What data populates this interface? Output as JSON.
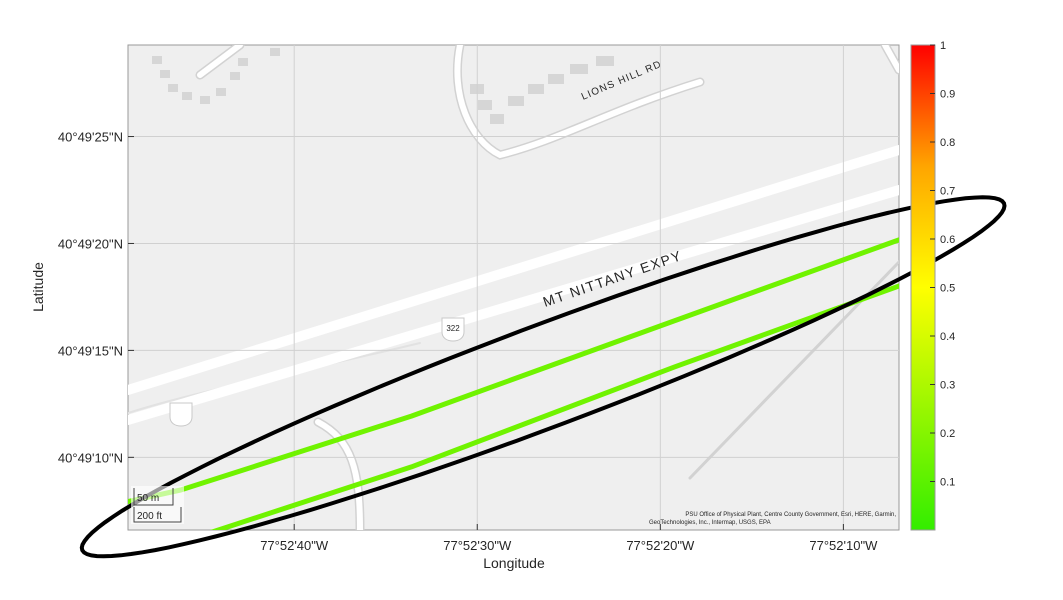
{
  "chart_data": {
    "type": "scatter",
    "xlabel": "Longitude",
    "ylabel": "Latitude",
    "x_ticks": [
      {
        "value": -77.877778,
        "label": "77°52'40\"W"
      },
      {
        "value": -77.875,
        "label": "77°52'30\"W"
      },
      {
        "value": -77.872222,
        "label": "77°52'20\"W"
      },
      {
        "value": -77.869444,
        "label": "77°52'10\"W"
      }
    ],
    "y_ticks": [
      {
        "value": 40.823611,
        "label": "40°49'25\"N"
      },
      {
        "value": 40.822222,
        "label": "40°49'20\"N"
      },
      {
        "value": 40.820833,
        "label": "40°49'15\"N"
      },
      {
        "value": 40.819444,
        "label": "40°49'10\"N"
      }
    ],
    "xlim": [
      -77.8803,
      -77.8686
    ],
    "ylim": [
      40.8185,
      40.8248
    ],
    "grid": true,
    "basemap_labels": [
      "LIONS HILL RD",
      "MT NITTANY EXPY",
      "322"
    ],
    "scale_bar": {
      "metric": "50 m",
      "imperial": "200 ft"
    },
    "attribution": [
      "PSU Office of Physical Plant, Centre County Government, Esri, HERE, Garmin,",
      "GeoTechnologies, Inc., Intermap, USGS, EPA"
    ],
    "colorbar": {
      "range": [
        0,
        1
      ],
      "ticks": [
        "0.1",
        "0.2",
        "0.3",
        "0.4",
        "0.5",
        "0.6",
        "0.7",
        "0.8",
        "0.9",
        "1"
      ],
      "colors": [
        "#33ee00",
        "#ffff00",
        "#ffa500",
        "#ff0000"
      ]
    },
    "series": [
      {
        "color_value": 0.15,
        "points": [
          [
            -77.8803,
            40.81887
          ],
          [
            -77.8795,
            40.81902
          ],
          [
            -77.876,
            40.81998
          ],
          [
            -77.872,
            40.82122
          ],
          [
            -77.8686,
            40.82227
          ]
        ]
      },
      {
        "color_value": 0.15,
        "points": [
          [
            -77.8803,
            40.81813
          ],
          [
            -77.8795,
            40.81834
          ],
          [
            -77.876,
            40.81932
          ],
          [
            -77.872,
            40.82062
          ],
          [
            -77.8686,
            40.82167
          ]
        ]
      }
    ],
    "annotation": {
      "shape": "ellipse",
      "center": [
        -77.874,
        40.82049
      ],
      "semi_axes_m": [
        640,
        72
      ],
      "bearing_deg": 67,
      "color": "#000000"
    }
  }
}
